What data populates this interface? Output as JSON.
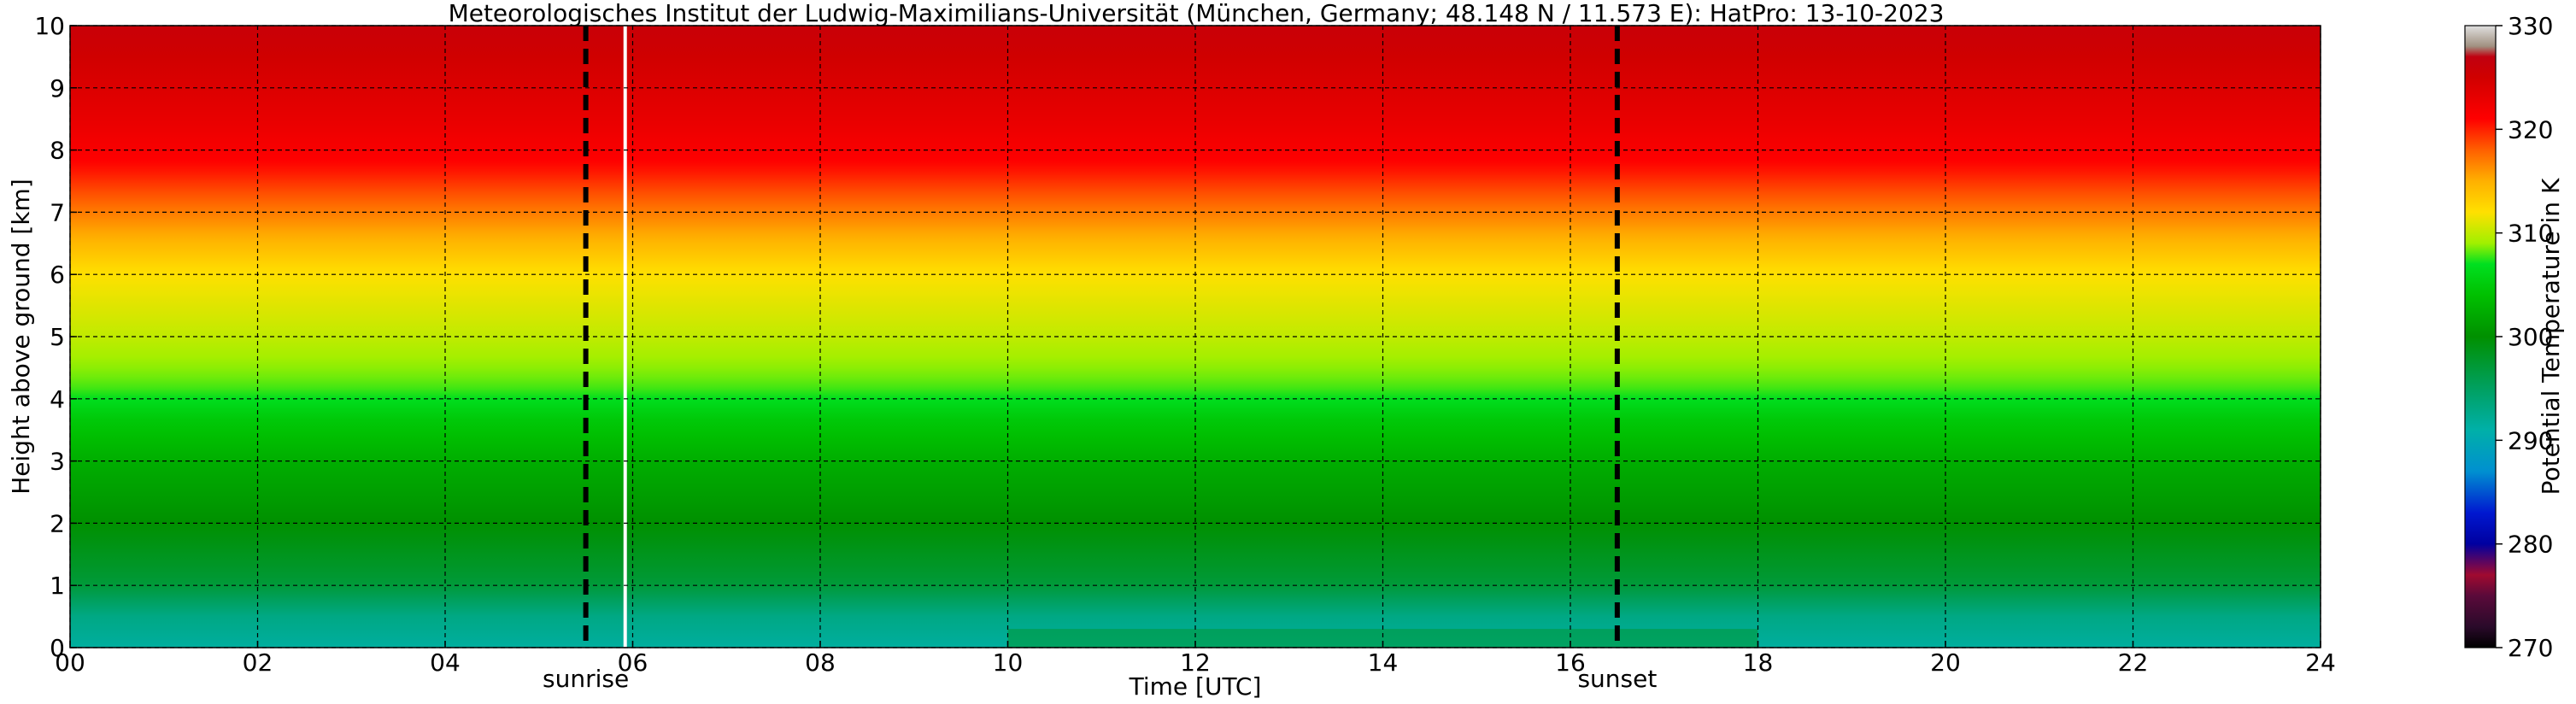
{
  "chart_data": {
    "type": "heatmap",
    "title": "Meteorologisches Institut der Ludwig-Maximilians-Universität (München, Germany; 48.148 N / 11.573 E):    HatPro: 13-10-2023",
    "xlabel": "Time [UTC]",
    "ylabel": "Height above ground [km]",
    "xlim": [
      0,
      24
    ],
    "ylim": [
      0,
      10
    ],
    "x_ticks": [
      0,
      2,
      4,
      6,
      8,
      10,
      12,
      14,
      16,
      18,
      20,
      22,
      24
    ],
    "x_tick_labels": [
      "00",
      "02",
      "04",
      "06",
      "08",
      "10",
      "12",
      "14",
      "16",
      "18",
      "20",
      "22",
      "24"
    ],
    "y_ticks": [
      0,
      1,
      2,
      3,
      4,
      5,
      6,
      7,
      8,
      9,
      10
    ],
    "y_tick_labels": [
      "0",
      "1",
      "2",
      "3",
      "4",
      "5",
      "6",
      "7",
      "8",
      "9",
      "10"
    ],
    "grid": true,
    "annotations": [
      {
        "label": "sunrise",
        "x": 5.5
      },
      {
        "label": "sunset",
        "x": 16.5
      }
    ],
    "data_gap_x": 5.92,
    "colorbar": {
      "label": "Potential Temperature in K",
      "range": [
        270,
        330
      ],
      "ticks": [
        270,
        280,
        290,
        300,
        310,
        320,
        330
      ],
      "stops": [
        {
          "value": 270,
          "color": "#000000"
        },
        {
          "value": 272,
          "color": "#2a0a2a"
        },
        {
          "value": 275,
          "color": "#5a0a3a"
        },
        {
          "value": 277,
          "color": "#a00a30"
        },
        {
          "value": 280,
          "color": "#0000a0"
        },
        {
          "value": 283,
          "color": "#0018d0"
        },
        {
          "value": 287,
          "color": "#0090d0"
        },
        {
          "value": 291,
          "color": "#00b0a8"
        },
        {
          "value": 295,
          "color": "#00a060"
        },
        {
          "value": 300,
          "color": "#009000"
        },
        {
          "value": 304,
          "color": "#00c000"
        },
        {
          "value": 307,
          "color": "#00e020"
        },
        {
          "value": 309,
          "color": "#a0f000"
        },
        {
          "value": 312,
          "color": "#ffe000"
        },
        {
          "value": 315,
          "color": "#ffb000"
        },
        {
          "value": 318,
          "color": "#ff6000"
        },
        {
          "value": 321,
          "color": "#ff0000"
        },
        {
          "value": 325,
          "color": "#d00000"
        },
        {
          "value": 327,
          "color": "#c00010"
        },
        {
          "value": 328,
          "color": "#a09080"
        },
        {
          "value": 330,
          "color": "#e0e0e0"
        }
      ]
    },
    "profile_levels": [
      {
        "height": 0.0,
        "theta": 291.5
      },
      {
        "height": 0.5,
        "theta": 293.0
      },
      {
        "height": 1.0,
        "theta": 297.0
      },
      {
        "height": 2.0,
        "theta": 300.0
      },
      {
        "height": 3.0,
        "theta": 302.5
      },
      {
        "height": 3.7,
        "theta": 305.0
      },
      {
        "height": 4.2,
        "theta": 308.0
      },
      {
        "height": 5.0,
        "theta": 310.0
      },
      {
        "height": 6.0,
        "theta": 312.0
      },
      {
        "height": 6.6,
        "theta": 315.0
      },
      {
        "height": 7.2,
        "theta": 318.0
      },
      {
        "height": 7.8,
        "theta": 321.0
      },
      {
        "height": 8.5,
        "theta": 323.0
      },
      {
        "height": 10.0,
        "theta": 326.0
      }
    ]
  }
}
